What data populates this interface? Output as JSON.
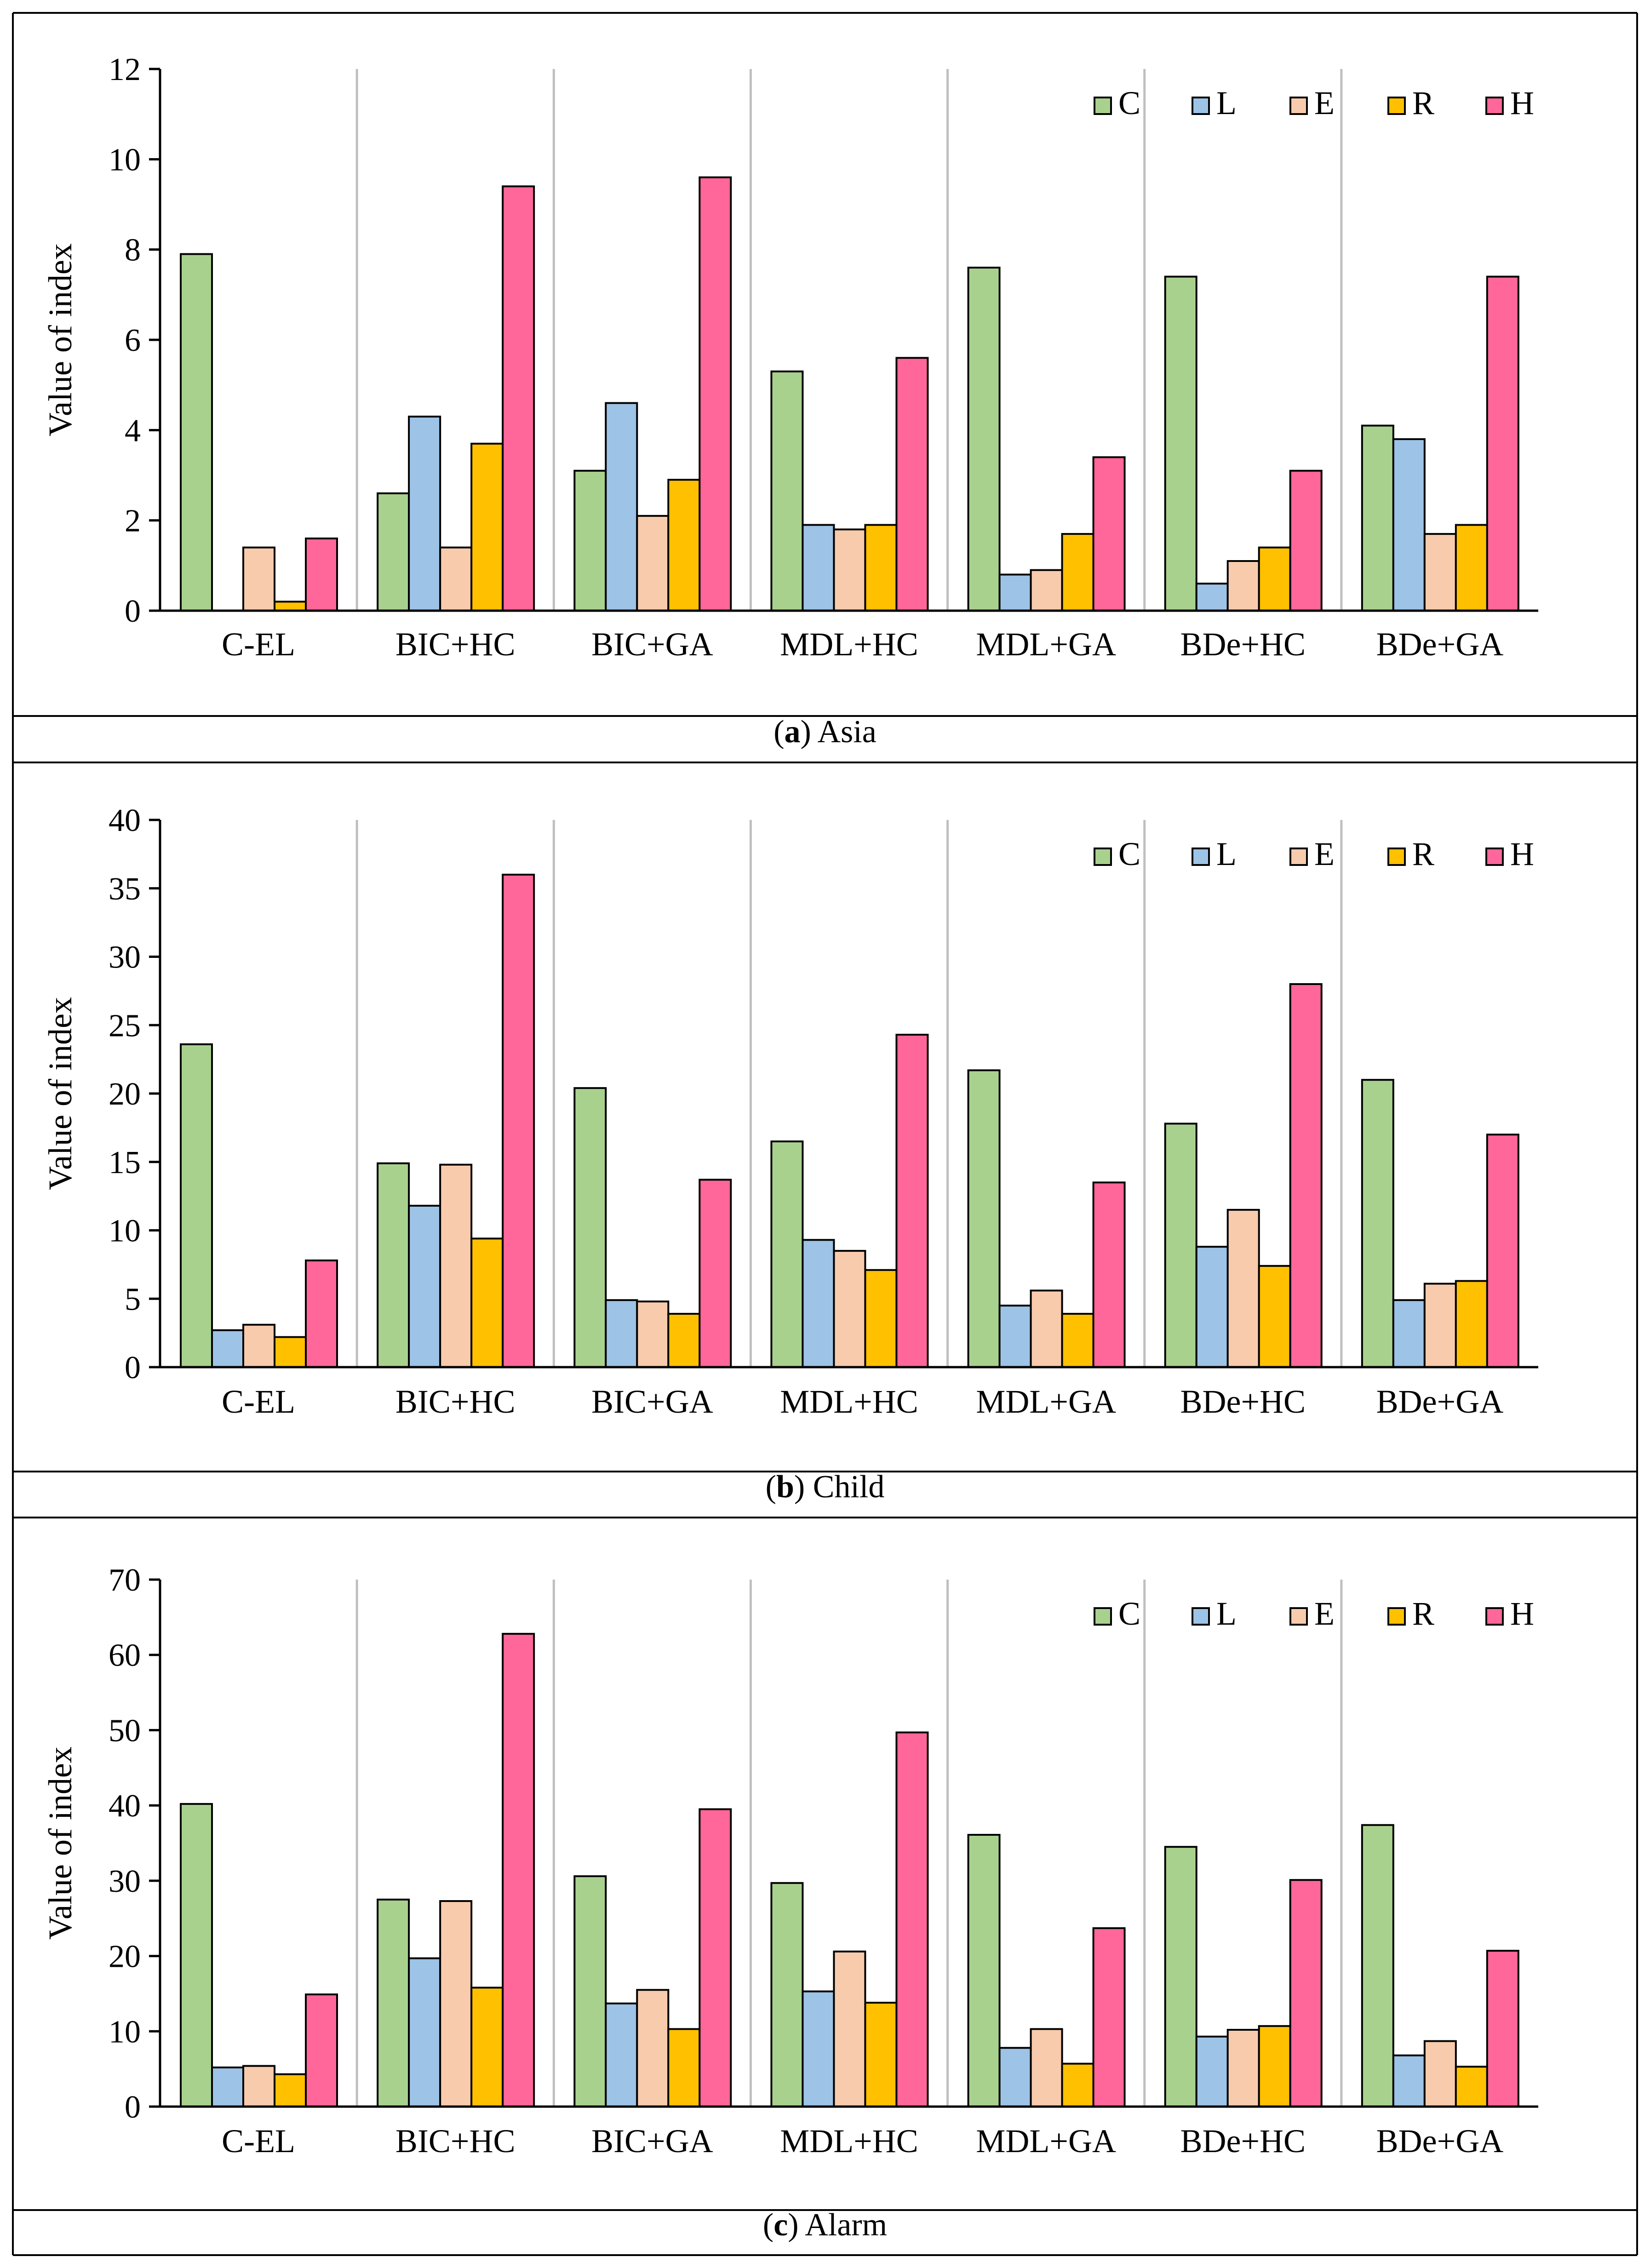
{
  "colors": {
    "C": "#a9d18e",
    "L": "#9dc3e6",
    "E": "#f8cbad",
    "R": "#ffc000",
    "H": "#ff6699",
    "separator": "#bfbfbf",
    "axis": "#000000"
  },
  "chart_data": [
    {
      "type": "bar",
      "caption_letter": "a",
      "caption_text": "Asia",
      "ylabel": "Value of index",
      "ylim": [
        0,
        12
      ],
      "yticks": [
        0,
        2,
        4,
        6,
        8,
        10,
        12
      ],
      "legend_position": "top-right",
      "categories": [
        "C-EL",
        "BIC+HC",
        "BIC+GA",
        "MDL+HC",
        "MDL+GA",
        "BDe+HC",
        "BDe+GA"
      ],
      "series": [
        {
          "name": "C",
          "values": [
            7.9,
            2.6,
            3.1,
            5.3,
            7.6,
            7.4,
            4.1
          ]
        },
        {
          "name": "L",
          "values": [
            0,
            4.3,
            4.6,
            1.9,
            0.8,
            0.6,
            3.8
          ]
        },
        {
          "name": "E",
          "values": [
            1.4,
            1.4,
            2.1,
            1.8,
            0.9,
            1.1,
            1.7
          ]
        },
        {
          "name": "R",
          "values": [
            0.2,
            3.7,
            2.9,
            1.9,
            1.7,
            1.4,
            1.9
          ]
        },
        {
          "name": "H",
          "values": [
            1.6,
            9.4,
            9.6,
            5.6,
            3.4,
            3.1,
            7.4
          ]
        }
      ]
    },
    {
      "type": "bar",
      "caption_letter": "b",
      "caption_text": "Child",
      "ylabel": "Value of index",
      "ylim": [
        0,
        40
      ],
      "yticks": [
        0,
        5,
        10,
        15,
        20,
        25,
        30,
        35,
        40
      ],
      "legend_position": "top-right",
      "categories": [
        "C-EL",
        "BIC+HC",
        "BIC+GA",
        "MDL+HC",
        "MDL+GA",
        "BDe+HC",
        "BDe+GA"
      ],
      "series": [
        {
          "name": "C",
          "values": [
            23.6,
            14.9,
            20.4,
            16.5,
            21.7,
            17.8,
            21.0
          ]
        },
        {
          "name": "L",
          "values": [
            2.7,
            11.8,
            4.9,
            9.3,
            4.5,
            8.8,
            4.9
          ]
        },
        {
          "name": "E",
          "values": [
            3.1,
            14.8,
            4.8,
            8.5,
            5.6,
            11.5,
            6.1
          ]
        },
        {
          "name": "R",
          "values": [
            2.2,
            9.4,
            3.9,
            7.1,
            3.9,
            7.4,
            6.3
          ]
        },
        {
          "name": "H",
          "values": [
            7.8,
            36.0,
            13.7,
            24.3,
            13.5,
            28.0,
            17.0
          ]
        }
      ]
    },
    {
      "type": "bar",
      "caption_letter": "c",
      "caption_text": "Alarm",
      "ylabel": "Value of index",
      "ylim": [
        0,
        70
      ],
      "yticks": [
        0,
        10,
        20,
        30,
        40,
        50,
        60,
        70
      ],
      "legend_position": "top-right",
      "categories": [
        "C-EL",
        "BIC+HC",
        "BIC+GA",
        "MDL+HC",
        "MDL+GA",
        "BDe+HC",
        "BDe+GA"
      ],
      "series": [
        {
          "name": "C",
          "values": [
            40.2,
            27.5,
            30.6,
            29.7,
            36.1,
            34.5,
            37.4
          ]
        },
        {
          "name": "L",
          "values": [
            5.2,
            19.7,
            13.7,
            15.3,
            7.8,
            9.3,
            6.8
          ]
        },
        {
          "name": "E",
          "values": [
            5.4,
            27.3,
            15.5,
            20.6,
            10.3,
            10.2,
            8.7
          ]
        },
        {
          "name": "R",
          "values": [
            4.3,
            15.8,
            10.3,
            13.8,
            5.7,
            10.7,
            5.3
          ]
        },
        {
          "name": "H",
          "values": [
            14.9,
            62.8,
            39.5,
            49.7,
            23.7,
            30.1,
            20.7
          ]
        }
      ]
    }
  ]
}
